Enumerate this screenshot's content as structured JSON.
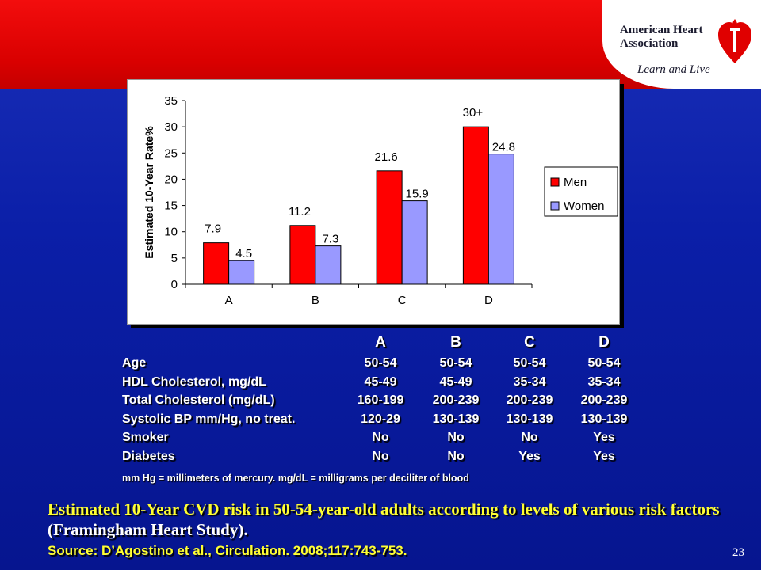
{
  "colors": {
    "top_band": "#e00000",
    "background": "#0b1fa8",
    "men": "#ff0000",
    "women": "#9999ff",
    "caption_yellow": "#ffff33"
  },
  "logo": {
    "name": "American Heart Association",
    "tagline": "Learn and Live",
    "icon": "heart-torch-icon"
  },
  "chart_data": {
    "type": "bar",
    "categories": [
      "A",
      "B",
      "C",
      "D"
    ],
    "series": [
      {
        "name": "Men",
        "values": [
          7.9,
          11.2,
          21.6,
          30
        ],
        "labels": [
          "7.9",
          "11.2",
          "21.6",
          "30+"
        ]
      },
      {
        "name": "Women",
        "values": [
          4.5,
          7.3,
          15.9,
          24.8
        ],
        "labels": [
          "4.5",
          "7.3",
          "15.9",
          "24.8"
        ]
      }
    ],
    "ylabel": "Estimated 10-Year Rate%",
    "xlabel": "",
    "ylim": [
      0,
      35
    ],
    "yticks": [
      0,
      5,
      10,
      15,
      20,
      25,
      30,
      35
    ],
    "grid": false,
    "legend": "right"
  },
  "table": {
    "headers": [
      "A",
      "B",
      "C",
      "D"
    ],
    "rows": [
      {
        "label": "Age",
        "values": [
          "50-54",
          "50-54",
          "50-54",
          "50-54"
        ]
      },
      {
        "label": "HDL Cholesterol, mg/dL",
        "values": [
          "45-49",
          "45-49",
          "35-34",
          "35-34"
        ]
      },
      {
        "label": "Total Cholesterol (mg/dL)",
        "values": [
          "160-199",
          "200-239",
          "200-239",
          "200-239"
        ]
      },
      {
        "label": "Systolic BP mm/Hg, no treat.",
        "values": [
          "120-29",
          "130-139",
          "130-139",
          "130-139"
        ]
      },
      {
        "label": "Smoker",
        "values": [
          "No",
          "No",
          "No",
          "Yes"
        ]
      },
      {
        "label": "Diabetes",
        "values": [
          "No",
          "No",
          "Yes",
          "Yes"
        ]
      }
    ],
    "note": "mm Hg = millimeters of mercury. mg/dL = milligrams per deciliter of blood"
  },
  "caption": {
    "yellow_part": "Estimated 10-Year CVD risk in 50-54-year-old adults according to levels of various risk factors",
    "white_part": " (Framingham Heart Study).",
    "source": "Source: D’Agostino et al., Circulation. 2008;117:743-753."
  },
  "page_number": "23"
}
